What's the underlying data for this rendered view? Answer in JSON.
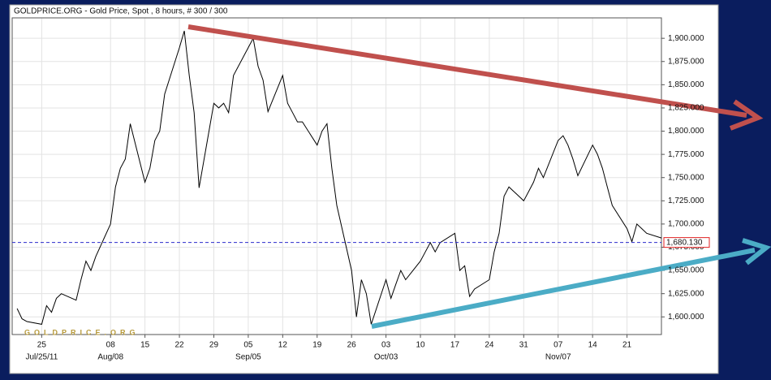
{
  "chart_data": {
    "type": "line",
    "title": "GOLDPRICE.ORG - Gold Price, Spot , 8 hours, # 300 / 300",
    "watermark": "GOLDPRICE.ORG",
    "color": "#000000",
    "x": [
      "2011-07-20",
      "2011-07-21",
      "2011-07-22",
      "2011-07-25",
      "2011-07-26",
      "2011-07-27",
      "2011-07-28",
      "2011-07-29",
      "2011-08-01",
      "2011-08-02",
      "2011-08-03",
      "2011-08-04",
      "2011-08-05",
      "2011-08-08",
      "2011-08-09",
      "2011-08-10",
      "2011-08-11",
      "2011-08-12",
      "2011-08-15",
      "2011-08-16",
      "2011-08-17",
      "2011-08-18",
      "2011-08-19",
      "2011-08-22",
      "2011-08-23",
      "2011-08-24",
      "2011-08-25",
      "2011-08-26",
      "2011-08-29",
      "2011-08-30",
      "2011-08-31",
      "2011-09-01",
      "2011-09-02",
      "2011-09-05",
      "2011-09-06",
      "2011-09-07",
      "2011-09-08",
      "2011-09-09",
      "2011-09-12",
      "2011-09-13",
      "2011-09-14",
      "2011-09-15",
      "2011-09-16",
      "2011-09-19",
      "2011-09-20",
      "2011-09-21",
      "2011-09-22",
      "2011-09-23",
      "2011-09-26",
      "2011-09-27",
      "2011-09-28",
      "2011-09-29",
      "2011-09-30",
      "2011-10-03",
      "2011-10-04",
      "2011-10-05",
      "2011-10-06",
      "2011-10-07",
      "2011-10-10",
      "2011-10-11",
      "2011-10-12",
      "2011-10-13",
      "2011-10-14",
      "2011-10-17",
      "2011-10-18",
      "2011-10-19",
      "2011-10-20",
      "2011-10-21",
      "2011-10-24",
      "2011-10-25",
      "2011-10-26",
      "2011-10-27",
      "2011-10-28",
      "2011-10-31",
      "2011-11-01",
      "2011-11-02",
      "2011-11-03",
      "2011-11-04",
      "2011-11-07",
      "2011-11-08",
      "2011-11-09",
      "2011-11-10",
      "2011-11-11",
      "2011-11-14",
      "2011-11-15",
      "2011-11-16",
      "2011-11-17",
      "2011-11-18",
      "2011-11-21",
      "2011-11-22",
      "2011-11-23",
      "2011-11-24",
      "2011-11-25",
      "2011-11-28"
    ],
    "values": [
      1609,
      1598,
      1595,
      1592,
      1612,
      1605,
      1620,
      1625,
      1618,
      1640,
      1660,
      1650,
      1665,
      1700,
      1740,
      1760,
      1770,
      1808,
      1745,
      1760,
      1790,
      1800,
      1840,
      1890,
      1908,
      1860,
      1820,
      1739,
      1830,
      1825,
      1830,
      1820,
      1860,
      1890,
      1900,
      1870,
      1855,
      1821,
      1860,
      1830,
      1820,
      1810,
      1810,
      1785,
      1800,
      1808,
      1760,
      1720,
      1650,
      1600,
      1640,
      1625,
      1592,
      1640,
      1620,
      1635,
      1650,
      1640,
      1660,
      1670,
      1680,
      1670,
      1680,
      1690,
      1650,
      1655,
      1622,
      1630,
      1640,
      1670,
      1690,
      1730,
      1740,
      1725,
      1735,
      1745,
      1760,
      1750,
      1790,
      1795,
      1785,
      1770,
      1752,
      1785,
      1775,
      1760,
      1740,
      1720,
      1695,
      1681,
      1700,
      1695,
      1690,
      1685
    ],
    "xlim": [
      "2011-07-19",
      "2011-11-28"
    ],
    "xticks": [
      {
        "value": "2011-07-25",
        "label": "25"
      },
      {
        "value": "2011-08-08",
        "label": "08"
      },
      {
        "value": "2011-08-15",
        "label": "15"
      },
      {
        "value": "2011-08-22",
        "label": "22"
      },
      {
        "value": "2011-08-29",
        "label": "29"
      },
      {
        "value": "2011-09-05",
        "label": "05"
      },
      {
        "value": "2011-09-12",
        "label": "12"
      },
      {
        "value": "2011-09-19",
        "label": "19"
      },
      {
        "value": "2011-09-26",
        "label": "26"
      },
      {
        "value": "2011-10-03",
        "label": "03"
      },
      {
        "value": "2011-10-10",
        "label": "10"
      },
      {
        "value": "2011-10-17",
        "label": "17"
      },
      {
        "value": "2011-10-24",
        "label": "24"
      },
      {
        "value": "2011-10-31",
        "label": "31"
      },
      {
        "value": "2011-11-07",
        "label": "07"
      },
      {
        "value": "2011-11-14",
        "label": "14"
      },
      {
        "value": "2011-11-21",
        "label": "21"
      }
    ],
    "xticks_major": [
      {
        "value": "2011-07-25",
        "label": "Jul/25/11"
      },
      {
        "value": "2011-08-08",
        "label": "Aug/08"
      },
      {
        "value": "2011-09-05",
        "label": "Sep/05"
      },
      {
        "value": "2011-10-03",
        "label": "Oct/03"
      },
      {
        "value": "2011-11-07",
        "label": "Nov/07"
      }
    ],
    "ylim": [
      1581,
      1922
    ],
    "yticks": [
      {
        "value": 1600,
        "label": "1,600.000"
      },
      {
        "value": 1625,
        "label": "1,625.000"
      },
      {
        "value": 1650,
        "label": "1,650.000"
      },
      {
        "value": 1675,
        "label": "1,675.000"
      },
      {
        "value": 1700,
        "label": "1,700.000"
      },
      {
        "value": 1725,
        "label": "1,725.000"
      },
      {
        "value": 1750,
        "label": "1,750.000"
      },
      {
        "value": 1775,
        "label": "1,775.000"
      },
      {
        "value": 1800,
        "label": "1,800.000"
      },
      {
        "value": 1825,
        "label": "1,825.000"
      },
      {
        "value": 1850,
        "label": "1,850.000"
      },
      {
        "value": 1875,
        "label": "1,875.000"
      },
      {
        "value": 1900,
        "label": "1,900.000"
      }
    ],
    "grid": true,
    "reference_line": {
      "value": 1680.13,
      "label": "1,680.130",
      "color": "#2b2bcc",
      "label_color": "#e02020"
    }
  }
}
